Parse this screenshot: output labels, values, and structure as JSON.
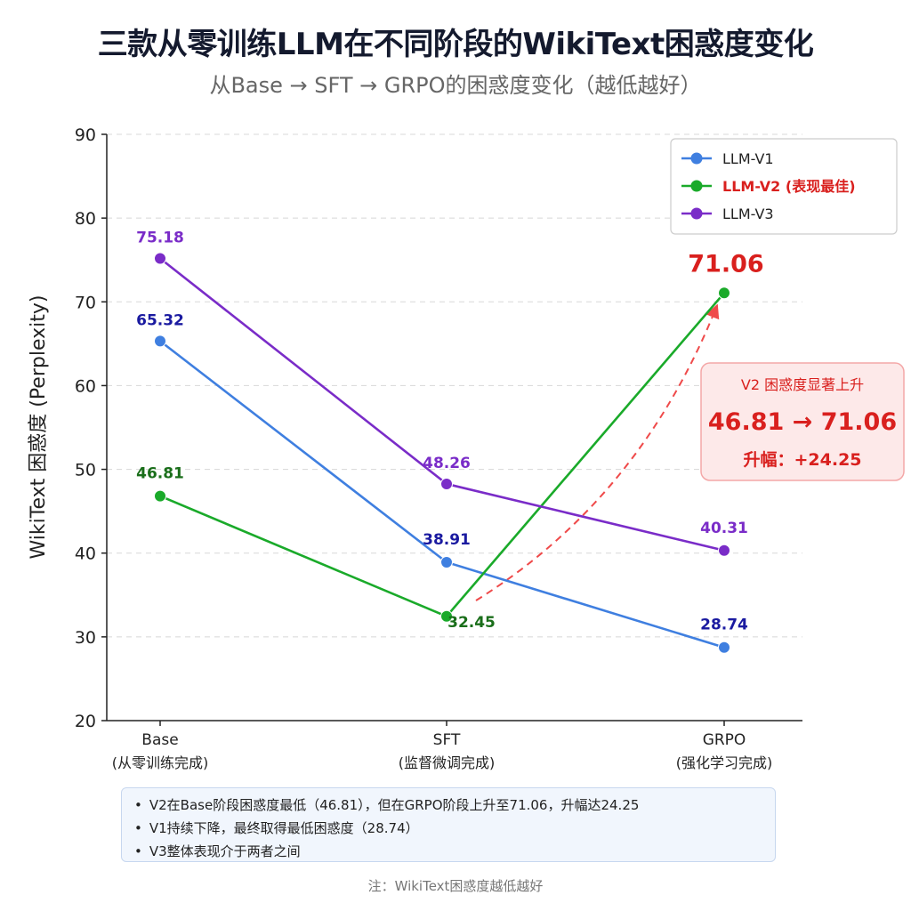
{
  "title": "三款从零训练LLM在不同阶段的WikiText困惑度变化",
  "subtitle": "从Base → SFT → GRPO的困惑度变化（越低越好）",
  "chart_data": {
    "type": "line",
    "categories": [
      "Base",
      "SFT",
      "GRPO"
    ],
    "category_sublabels": [
      "(从零训练完成)",
      "(监督微调完成)",
      "(强化学习完成)"
    ],
    "ylabel": "WikiText 困惑度 (Perplexity)",
    "xlabel": "",
    "ylim": [
      20,
      90
    ],
    "yticks": [
      20,
      30,
      40,
      50,
      60,
      70,
      80,
      90
    ],
    "grid": "horizontal dashed",
    "legend_position": "top-right",
    "series": [
      {
        "name": "LLM-V1",
        "color": "#3f7fe0",
        "label_color": "#1a1aa0",
        "values": [
          65.32,
          38.91,
          28.74
        ],
        "labels": [
          "65.32",
          "38.91",
          "28.74"
        ]
      },
      {
        "name": "LLM-V2 (表现最佳)",
        "color": "#1aaa2a",
        "label_color": "#1a6e1a",
        "values": [
          46.81,
          32.45,
          71.06
        ],
        "labels": [
          "46.81",
          "32.45",
          "71.06"
        ]
      },
      {
        "name": "LLM-V3",
        "color": "#7a2cc8",
        "label_color": "#7a2cc8",
        "values": [
          75.18,
          48.26,
          40.31
        ],
        "labels": [
          "75.18",
          "48.26",
          "40.31"
        ]
      }
    ],
    "annotation": {
      "heading": "V2 困惑度显著上升",
      "change": "46.81 → 71.06",
      "increase": "升幅：+24.25",
      "color": "#d9201e"
    }
  },
  "notes": [
    "V2在Base阶段困惑度最低（46.81），但在GRPO阶段上升至71.06，升幅达24.25",
    "V1持续下降，最终取得最低困惑度（28.74）",
    "V3整体表现介于两者之间"
  ],
  "footnote": "注：WikiText困惑度越低越好"
}
